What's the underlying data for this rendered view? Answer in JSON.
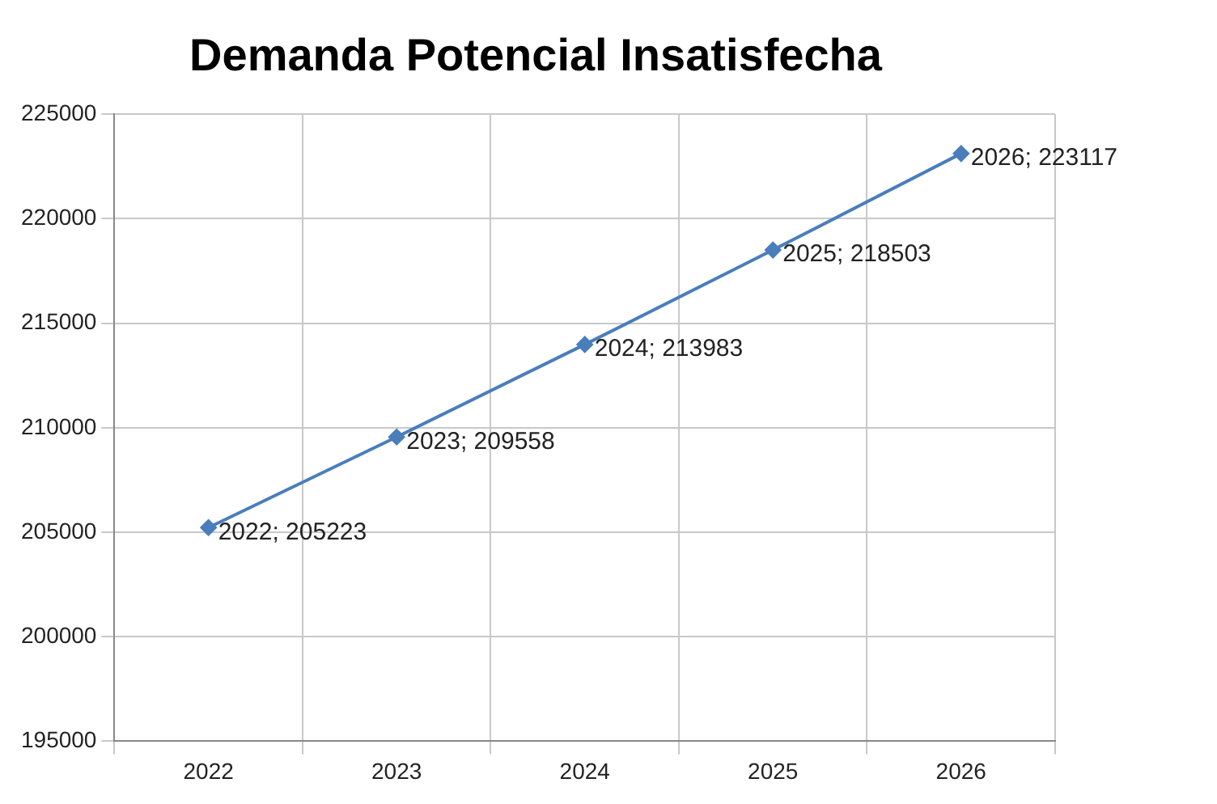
{
  "chart_data": {
    "type": "line",
    "title": "Demanda Potencial Insatisfecha",
    "categories": [
      "2022",
      "2023",
      "2024",
      "2025",
      "2026"
    ],
    "values": [
      205223,
      209558,
      213983,
      218503,
      223117
    ],
    "value_labels": [
      "2022; 205223",
      "2023; 209558",
      "2024; 213983",
      "2025; 218503",
      "2026; 223117"
    ],
    "color": "#4a7ebb",
    "marker": "diamond",
    "line_style": "solid",
    "ylim": [
      195000,
      225000
    ],
    "yticks": [
      195000,
      200000,
      205000,
      210000,
      215000,
      220000,
      225000
    ],
    "grid": true,
    "legend": false
  }
}
